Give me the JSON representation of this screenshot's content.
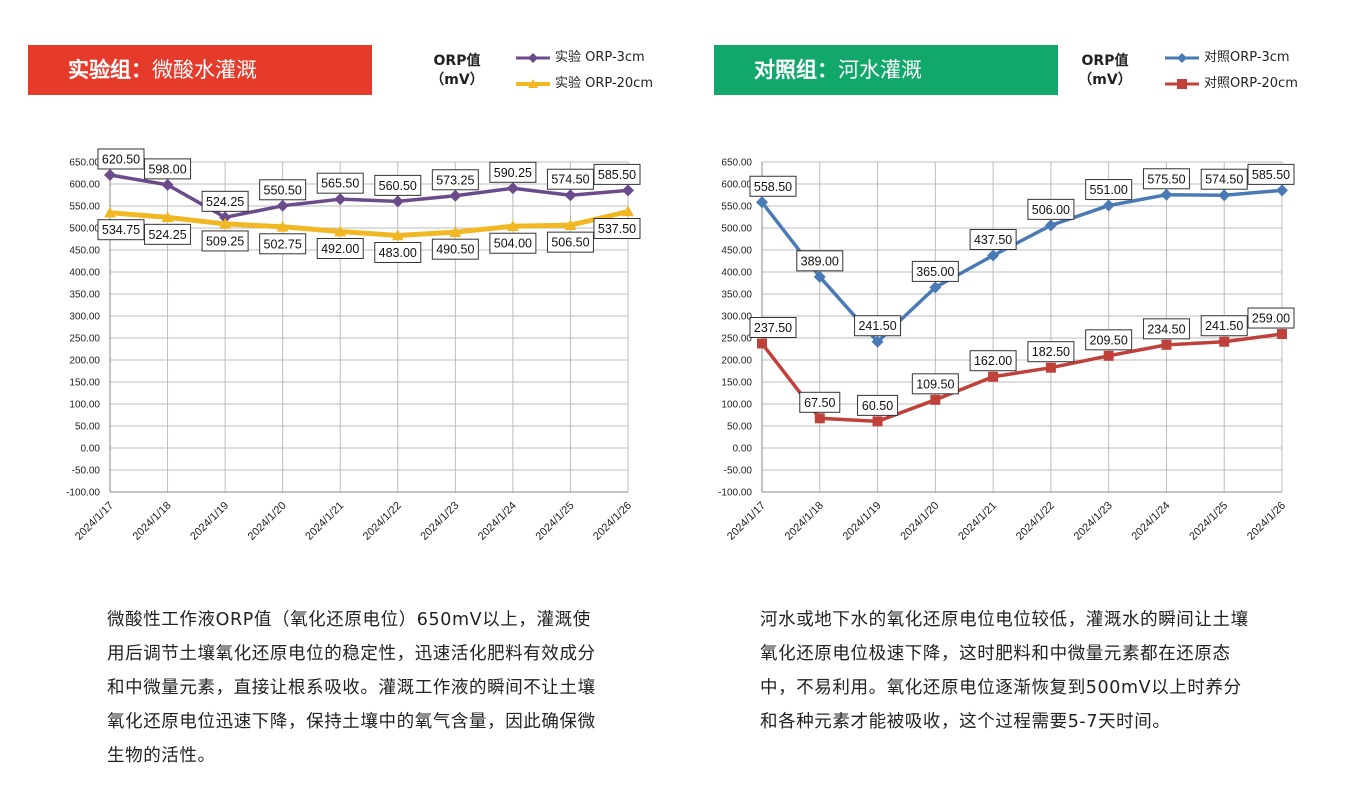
{
  "left": {
    "banner": {
      "bold": "实验组：",
      "rest": "微酸水灌溉",
      "color": "#e63a2a"
    },
    "unit": {
      "line1": "ORP值",
      "line2": "（mV）"
    },
    "description": "微酸性工作液ORP值（氧化还原电位）650mV以上，灌溉使用后调节土壤氧化还原电位的稳定性，迅速活化肥料有效成分和中微量元素，直接让根系吸收。灌溉工作液的瞬间不让土壤氧化还原电位迅速下降，保持土壤中的氧气含量，因此确保微生物的活性。"
  },
  "right": {
    "banner": {
      "bold": "对照组：",
      "rest": "河水灌溉",
      "color": "#12a86b"
    },
    "unit": {
      "line1": "ORP值",
      "line2": "（mV）"
    },
    "description": "河水或地下水的氧化还原电位电位较低，灌溉水的瞬间让土壤氧化还原电位极速下降，这时肥料和中微量元素都在还原态中，不易利用。氧化还原电位逐渐恢复到500mV以上时养分和各种元素才能被吸收，这个过程需要5-7天时间。"
  },
  "chart_data": [
    {
      "type": "line",
      "categories": [
        "2024/1/17",
        "2024/1/18",
        "2024/1/19",
        "2024/1/20",
        "2024/1/21",
        "2024/1/22",
        "2024/1/23",
        "2024/1/24",
        "2024/1/25",
        "2024/1/26"
      ],
      "yticks": [
        "650.00",
        "600.00",
        "550.00",
        "500.00",
        "450.00",
        "400.00",
        "350.00",
        "300.00",
        "250.00",
        "200.00",
        "150.00",
        "100.00",
        "50.00",
        "0.00",
        "-50.00",
        "-100.00"
      ],
      "ylim": [
        -100,
        650
      ],
      "grid": true,
      "legend_position": "top-right",
      "series": [
        {
          "name": "实验 ORP-3cm",
          "marker": "diamond",
          "color": "#6b4b8c",
          "label_side": "above",
          "values": [
            620.5,
            598.0,
            524.25,
            550.5,
            565.5,
            560.5,
            573.25,
            590.25,
            574.5,
            585.5
          ],
          "labels": [
            "620.50",
            "598.00",
            "524.25",
            "550.50",
            "565.50",
            "560.50",
            "573.25",
            "590.25",
            "574.50",
            "585.50"
          ]
        },
        {
          "name": "实验 ORP-20cm",
          "marker": "triangle",
          "color": "#f2b824",
          "label_side": "below",
          "values": [
            534.75,
            524.25,
            509.25,
            502.75,
            492.0,
            483.0,
            490.5,
            504.0,
            506.5,
            537.5
          ],
          "labels": [
            "534.75",
            "524.25",
            "509.25",
            "502.75",
            "492.00",
            "483.00",
            "490.50",
            "504.00",
            "506.50",
            "537.50"
          ]
        }
      ]
    },
    {
      "type": "line",
      "categories": [
        "2024/1/17",
        "2024/1/18",
        "2024/1/19",
        "2024/1/20",
        "2024/1/21",
        "2024/1/22",
        "2024/1/23",
        "2024/1/24",
        "2024/1/25",
        "2024/1/26"
      ],
      "yticks": [
        "650.00",
        "600.00",
        "550.00",
        "500.00",
        "450.00",
        "400.00",
        "350.00",
        "300.00",
        "250.00",
        "200.00",
        "150.00",
        "100.00",
        "50.00",
        "0.00",
        "-50.00",
        "-100.00"
      ],
      "ylim": [
        -100,
        650
      ],
      "grid": true,
      "legend_position": "top-right",
      "series": [
        {
          "name": "对照ORP-3cm",
          "marker": "diamond",
          "color": "#4a7ab5",
          "label_side": "above",
          "values": [
            558.5,
            389.0,
            241.5,
            365.0,
            437.5,
            506.0,
            551.0,
            575.5,
            574.5,
            585.5
          ],
          "labels": [
            "558.50",
            "389.00",
            "241.50",
            "365.00",
            "437.50",
            "506.00",
            "551.00",
            "575.50",
            "574.50",
            "585.50"
          ]
        },
        {
          "name": "对照ORP-20cm",
          "marker": "square",
          "color": "#c0403a",
          "label_side": "above",
          "values": [
            237.5,
            67.5,
            60.5,
            109.5,
            162.0,
            182.5,
            209.5,
            234.5,
            241.5,
            259.0
          ],
          "labels": [
            "237.50",
            "67.50",
            "60.50",
            "109.50",
            "162.00",
            "182.50",
            "209.50",
            "234.50",
            "241.50",
            "259.00"
          ]
        }
      ]
    }
  ]
}
